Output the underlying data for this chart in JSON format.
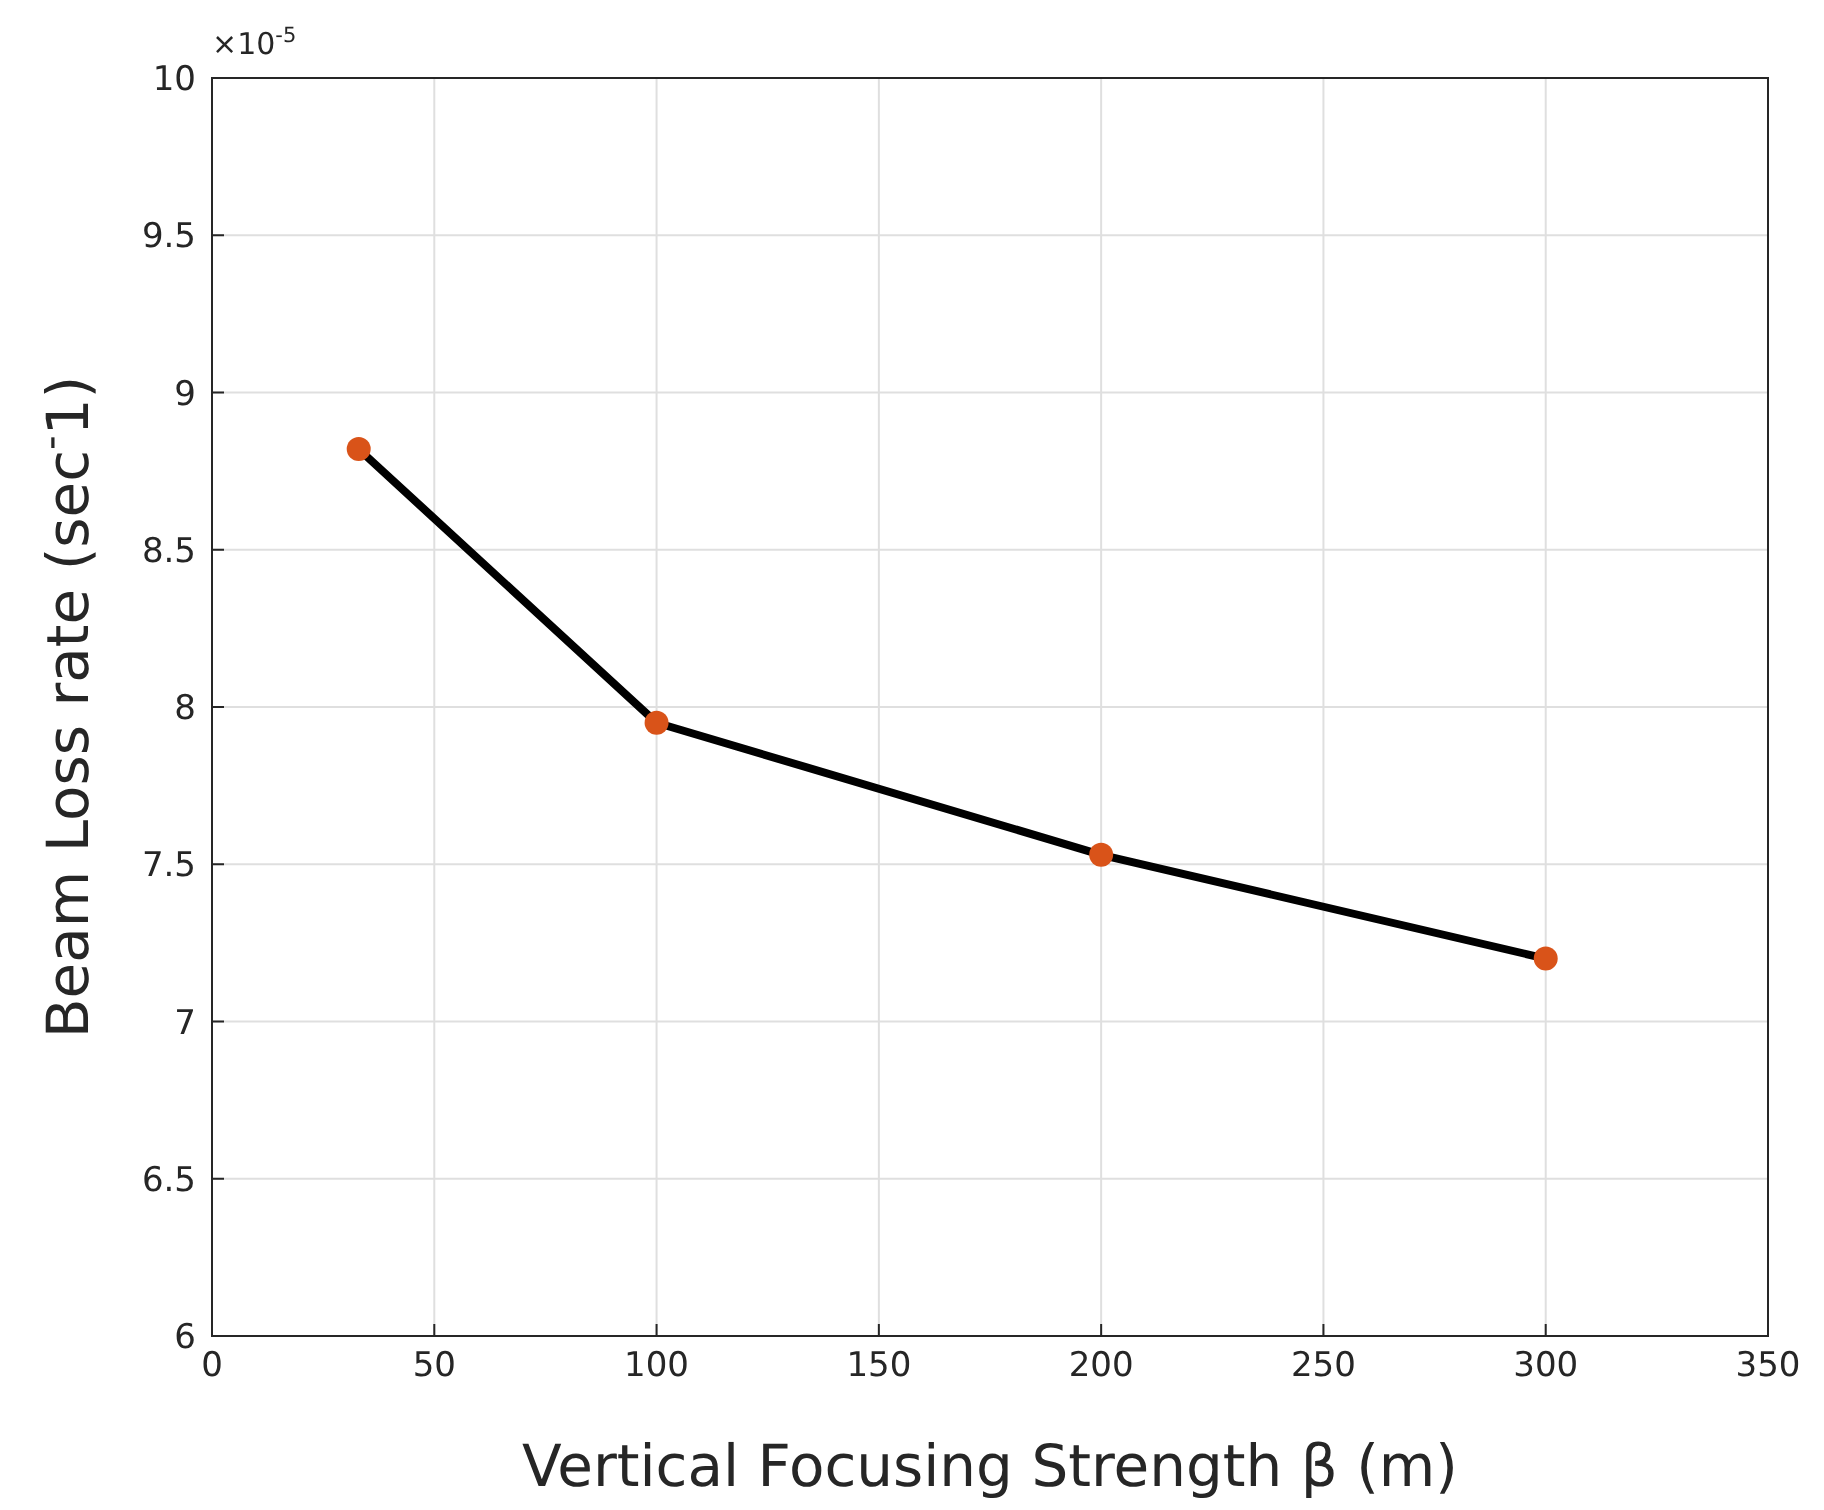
{
  "chart_data": {
    "type": "line",
    "xlabel": "Vertical Focusing Strength β (m)",
    "ylabel": "Beam Loss rate (sec$^{-}$1)",
    "annotations": [
      "×10$^{-5}$"
    ],
    "x": [
      33,
      100,
      200,
      300
    ],
    "series": [
      {
        "color": "#000000",
        "marker": "none",
        "values": [
          8.82,
          7.95,
          7.53,
          7.2
        ]
      },
      {
        "type": "scatter",
        "color": "#d95319",
        "marker": "circle",
        "values": [
          8.82,
          7.95,
          7.53,
          7.2
        ]
      }
    ],
    "xlim": [
      0,
      350
    ],
    "xticks": [
      0,
      50,
      100,
      150,
      200,
      250,
      300,
      350
    ],
    "ylim": [
      6,
      10
    ],
    "yticks": [
      6,
      6.5,
      7,
      7.5,
      8,
      8.5,
      9,
      9.5,
      10
    ],
    "grid": true,
    "line_style": "solid"
  }
}
